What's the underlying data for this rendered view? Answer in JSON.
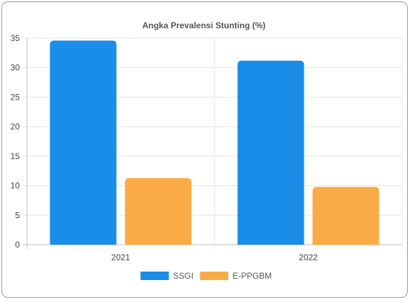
{
  "chart_data": {
    "type": "bar",
    "title": "Angka Prevalensi Stunting (%)",
    "categories": [
      "2021",
      "2022"
    ],
    "series": [
      {
        "name": "SSGI",
        "values": [
          34.6,
          31.2
        ],
        "color": "#1a8de8"
      },
      {
        "name": "E-PPGBM",
        "values": [
          11.3,
          9.8
        ],
        "color": "#fbab45"
      }
    ],
    "ylim": [
      0,
      35
    ],
    "yticks": [
      "0",
      "5",
      "10",
      "15",
      "20",
      "25",
      "30",
      "35"
    ],
    "grid": true,
    "legend": "bottom"
  }
}
